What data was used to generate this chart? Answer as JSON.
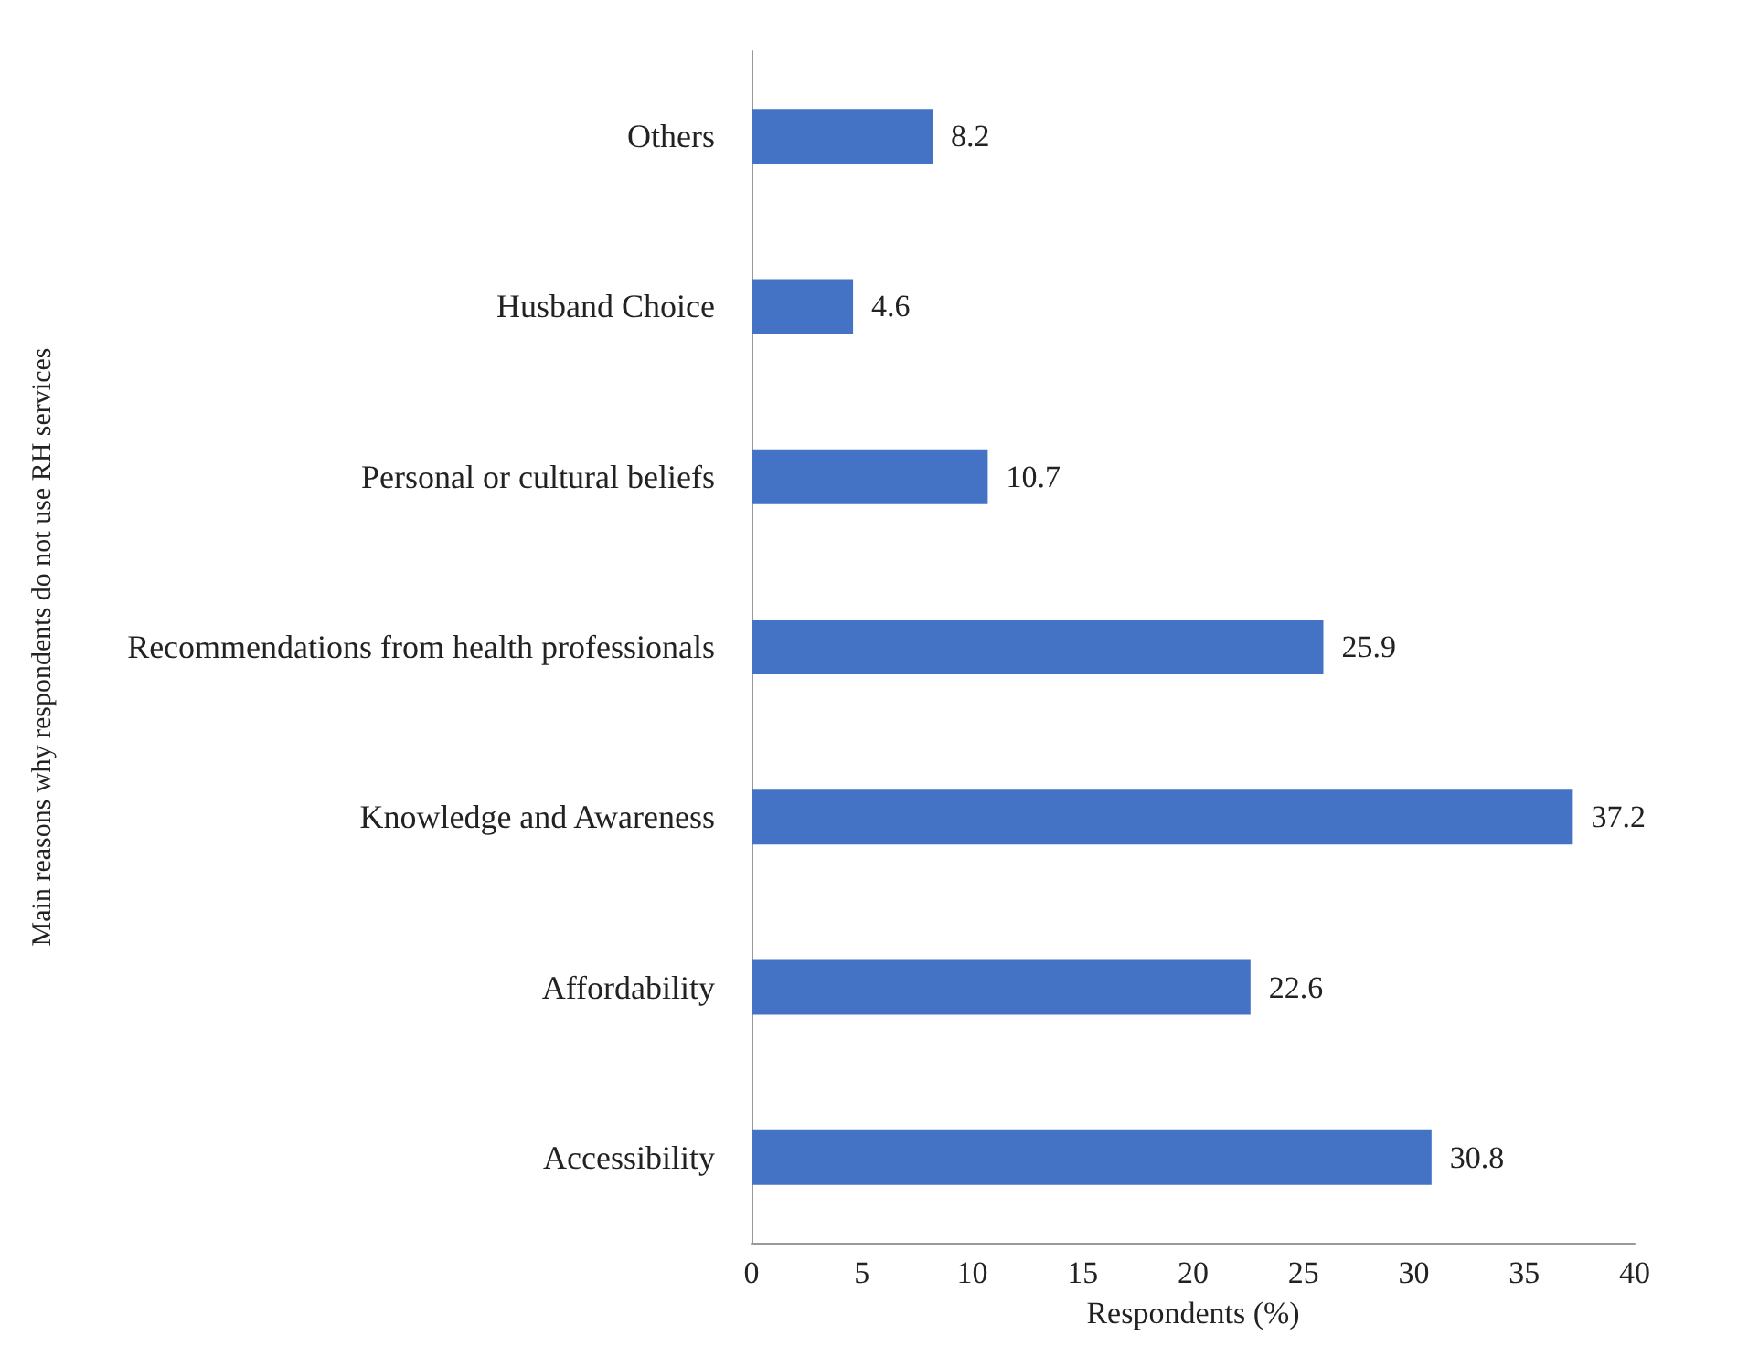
{
  "chart_data": {
    "type": "bar",
    "orientation": "horizontal",
    "ylabel": "Main reasons why respondents do not use RH services",
    "xlabel": "Respondents (%)",
    "categories": [
      "Others",
      "Husband Choice",
      "Personal or cultural beliefs",
      "Recommendations from health professionals",
      "Knowledge and Awareness",
      "Affordability",
      "Accessibility"
    ],
    "values": [
      8.2,
      4.6,
      10.7,
      25.9,
      37.2,
      22.6,
      30.8
    ],
    "color": "#4472c4",
    "data_labels": true,
    "xlim": [
      0,
      40
    ],
    "xticks": [
      0,
      5,
      10,
      15,
      20,
      25,
      30,
      35,
      40
    ],
    "grid": false
  }
}
